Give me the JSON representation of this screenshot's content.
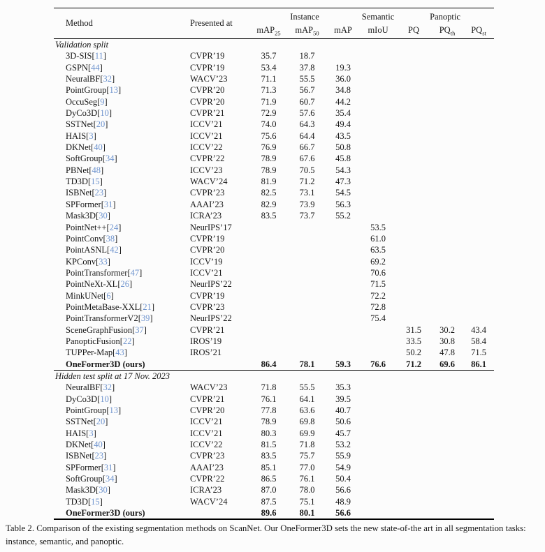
{
  "colors": {
    "citation_link": "#6f94ce",
    "rule": "#000000",
    "text": "#161616",
    "background": "#fcfcfc"
  },
  "header": {
    "method": "Method",
    "presented_at": "Presented at",
    "groups": {
      "instance": "Instance",
      "semantic": "Semantic",
      "panoptic": "Panoptic"
    },
    "columns": [
      {
        "base": "mAP",
        "sub": "25"
      },
      {
        "base": "mAP",
        "sub": "50"
      },
      {
        "base": "mAP",
        "sub": ""
      },
      {
        "base": "mIoU",
        "sub": ""
      },
      {
        "base": "PQ",
        "sub": ""
      },
      {
        "base": "PQ",
        "sub": "th"
      },
      {
        "base": "PQ",
        "sub": "st"
      }
    ]
  },
  "sections": [
    {
      "title": "Validation split",
      "rows": [
        {
          "method": "3D-SIS",
          "cite": "11",
          "venue": "CVPR’19",
          "bold": false,
          "values": [
            "35.7",
            "18.7",
            "",
            "",
            "",
            "",
            ""
          ]
        },
        {
          "method": "GSPN",
          "cite": "44",
          "venue": "CVPR’19",
          "bold": false,
          "values": [
            "53.4",
            "37.8",
            "19.3",
            "",
            "",
            "",
            ""
          ]
        },
        {
          "method": "NeuralBF",
          "cite": "32",
          "venue": "WACV’23",
          "bold": false,
          "values": [
            "71.1",
            "55.5",
            "36.0",
            "",
            "",
            "",
            ""
          ]
        },
        {
          "method": "PointGroup",
          "cite": "13",
          "venue": "CVPR’20",
          "bold": false,
          "values": [
            "71.3",
            "56.7",
            "34.8",
            "",
            "",
            "",
            ""
          ]
        },
        {
          "method": "OccuSeg",
          "cite": "9",
          "venue": "CVPR’20",
          "bold": false,
          "values": [
            "71.9",
            "60.7",
            "44.2",
            "",
            "",
            "",
            ""
          ]
        },
        {
          "method": "DyCo3D",
          "cite": "10",
          "venue": "CVPR’21",
          "bold": false,
          "values": [
            "72.9",
            "57.6",
            "35.4",
            "",
            "",
            "",
            ""
          ]
        },
        {
          "method": "SSTNet",
          "cite": "20",
          "venue": "ICCV’21",
          "bold": false,
          "values": [
            "74.0",
            "64.3",
            "49.4",
            "",
            "",
            "",
            ""
          ]
        },
        {
          "method": "HAIS",
          "cite": "3",
          "venue": "ICCV’21",
          "bold": false,
          "values": [
            "75.6",
            "64.4",
            "43.5",
            "",
            "",
            "",
            ""
          ]
        },
        {
          "method": "DKNet",
          "cite": "40",
          "venue": "ICCV’22",
          "bold": false,
          "values": [
            "76.9",
            "66.7",
            "50.8",
            "",
            "",
            "",
            ""
          ]
        },
        {
          "method": "SoftGroup",
          "cite": "34",
          "venue": "CVPR’22",
          "bold": false,
          "values": [
            "78.9",
            "67.6",
            "45.8",
            "",
            "",
            "",
            ""
          ]
        },
        {
          "method": "PBNet",
          "cite": "48",
          "venue": "ICCV’23",
          "bold": false,
          "values": [
            "78.9",
            "70.5",
            "54.3",
            "",
            "",
            "",
            ""
          ]
        },
        {
          "method": "TD3D",
          "cite": "15",
          "venue": "WACV’24",
          "bold": false,
          "values": [
            "81.9",
            "71.2",
            "47.3",
            "",
            "",
            "",
            ""
          ]
        },
        {
          "method": "ISBNet",
          "cite": "23",
          "venue": "CVPR’23",
          "bold": false,
          "values": [
            "82.5",
            "73.1",
            "54.5",
            "",
            "",
            "",
            ""
          ]
        },
        {
          "method": "SPFormer",
          "cite": "31",
          "venue": "AAAI’23",
          "bold": false,
          "values": [
            "82.9",
            "73.9",
            "56.3",
            "",
            "",
            "",
            ""
          ]
        },
        {
          "method": "Mask3D",
          "cite": "30",
          "venue": "ICRA’23",
          "bold": false,
          "values": [
            "83.5",
            "73.7",
            "55.2",
            "",
            "",
            "",
            ""
          ]
        },
        {
          "method": "PointNet++",
          "cite": "24",
          "venue": "NeurIPS’17",
          "bold": false,
          "values": [
            "",
            "",
            "",
            "53.5",
            "",
            "",
            ""
          ]
        },
        {
          "method": "PointConv",
          "cite": "38",
          "venue": "CVPR’19",
          "bold": false,
          "values": [
            "",
            "",
            "",
            "61.0",
            "",
            "",
            ""
          ]
        },
        {
          "method": "PointASNL",
          "cite": "42",
          "venue": "CVPR’20",
          "bold": false,
          "values": [
            "",
            "",
            "",
            "63.5",
            "",
            "",
            ""
          ]
        },
        {
          "method": "KPConv",
          "cite": "33",
          "venue": "ICCV’19",
          "bold": false,
          "values": [
            "",
            "",
            "",
            "69.2",
            "",
            "",
            ""
          ]
        },
        {
          "method": "PointTransformer",
          "cite": "47",
          "venue": "ICCV’21",
          "bold": false,
          "values": [
            "",
            "",
            "",
            "70.6",
            "",
            "",
            ""
          ]
        },
        {
          "method": "PointNeXt-XL",
          "cite": "26",
          "venue": "NeurIPS’22",
          "bold": false,
          "values": [
            "",
            "",
            "",
            "71.5",
            "",
            "",
            ""
          ]
        },
        {
          "method": "MinkUNet",
          "cite": "6",
          "venue": "CVPR’19",
          "bold": false,
          "values": [
            "",
            "",
            "",
            "72.2",
            "",
            "",
            ""
          ]
        },
        {
          "method": "PointMetaBase-XXL",
          "cite": "21",
          "venue": "CVPR’23",
          "bold": false,
          "values": [
            "",
            "",
            "",
            "72.8",
            "",
            "",
            ""
          ]
        },
        {
          "method": "PointTransformerV2",
          "cite": "39",
          "venue": "NeurIPS’22",
          "bold": false,
          "values": [
            "",
            "",
            "",
            "75.4",
            "",
            "",
            ""
          ]
        },
        {
          "method": "SceneGraphFusion",
          "cite": "37",
          "venue": "CVPR’21",
          "bold": false,
          "values": [
            "",
            "",
            "",
            "",
            "31.5",
            "30.2",
            "43.4"
          ]
        },
        {
          "method": "PanopticFusion",
          "cite": "22",
          "venue": "IROS’19",
          "bold": false,
          "values": [
            "",
            "",
            "",
            "",
            "33.5",
            "30.8",
            "58.4"
          ]
        },
        {
          "method": "TUPPer-Map",
          "cite": "43",
          "venue": "IROS’21",
          "bold": false,
          "values": [
            "",
            "",
            "",
            "",
            "50.2",
            "47.8",
            "71.5"
          ]
        },
        {
          "method": "OneFormer3D (ours)",
          "cite": "",
          "venue": "",
          "bold": true,
          "values": [
            "86.4",
            "78.1",
            "59.3",
            "76.6",
            "71.2",
            "69.6",
            "86.1"
          ]
        }
      ]
    },
    {
      "title": "Hidden test split at 17 Nov. 2023",
      "rows": [
        {
          "method": "NeuralBF",
          "cite": "32",
          "venue": "WACV’23",
          "bold": false,
          "values": [
            "71.8",
            "55.5",
            "35.3",
            "",
            "",
            "",
            ""
          ]
        },
        {
          "method": "DyCo3D",
          "cite": "10",
          "venue": "CVPR’21",
          "bold": false,
          "values": [
            "76.1",
            "64.1",
            "39.5",
            "",
            "",
            "",
            ""
          ]
        },
        {
          "method": "PointGroup",
          "cite": "13",
          "venue": "CVPR’20",
          "bold": false,
          "values": [
            "77.8",
            "63.6",
            "40.7",
            "",
            "",
            "",
            ""
          ]
        },
        {
          "method": "SSTNet",
          "cite": "20",
          "venue": "ICCV’21",
          "bold": false,
          "values": [
            "78.9",
            "69.8",
            "50.6",
            "",
            "",
            "",
            ""
          ]
        },
        {
          "method": "HAIS",
          "cite": "3",
          "venue": "ICCV’21",
          "bold": false,
          "values": [
            "80.3",
            "69.9",
            "45.7",
            "",
            "",
            "",
            ""
          ]
        },
        {
          "method": "DKNet",
          "cite": "40",
          "venue": "ICCV’22",
          "bold": false,
          "values": [
            "81.5",
            "71.8",
            "53.2",
            "",
            "",
            "",
            ""
          ]
        },
        {
          "method": "ISBNet",
          "cite": "23",
          "venue": "CVPR’23",
          "bold": false,
          "values": [
            "83.5",
            "75.7",
            "55.9",
            "",
            "",
            "",
            ""
          ]
        },
        {
          "method": "SPFormer",
          "cite": "31",
          "venue": "AAAI’23",
          "bold": false,
          "values": [
            "85.1",
            "77.0",
            "54.9",
            "",
            "",
            "",
            ""
          ]
        },
        {
          "method": "SoftGroup",
          "cite": "34",
          "venue": "CVPR’22",
          "bold": false,
          "values": [
            "86.5",
            "76.1",
            "50.4",
            "",
            "",
            "",
            ""
          ]
        },
        {
          "method": "Mask3D",
          "cite": "30",
          "venue": "ICRA’23",
          "bold": false,
          "values": [
            "87.0",
            "78.0",
            "56.6",
            "",
            "",
            "",
            ""
          ]
        },
        {
          "method": "TD3D",
          "cite": "15",
          "venue": "WACV’24",
          "bold": false,
          "values": [
            "87.5",
            "75.1",
            "48.9",
            "",
            "",
            "",
            ""
          ]
        },
        {
          "method": "OneFormer3D (ours)",
          "cite": "",
          "venue": "",
          "bold": true,
          "values": [
            "89.6",
            "80.1",
            "56.6",
            "",
            "",
            "",
            ""
          ]
        }
      ]
    }
  ],
  "caption": {
    "text": "Table 2. Comparison of the existing segmentation methods on ScanNet. Our OneFormer3D sets the new state-of-the art in all segmentation tasks: instance, semantic, and panoptic."
  }
}
